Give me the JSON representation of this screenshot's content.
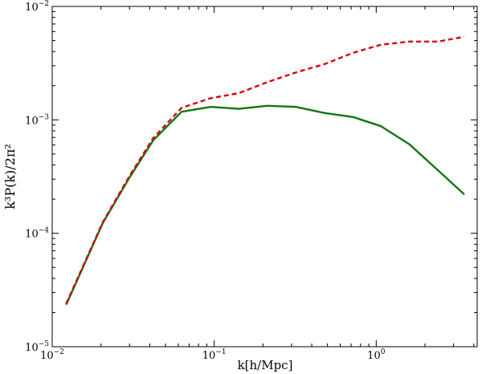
{
  "chart_data": {
    "type": "line",
    "xlabel": "k[h/Mpc]",
    "ylabel": "k³P(k)/2π²",
    "xscale": "log",
    "yscale": "log",
    "xlim": [
      0.01,
      4.2
    ],
    "ylim": [
      1e-05,
      0.01
    ],
    "grid": false,
    "legend": "none",
    "x_ticks": [
      {
        "value": 0.01,
        "base": "10",
        "exp": "−2"
      },
      {
        "value": 0.1,
        "base": "10",
        "exp": "−1"
      },
      {
        "value": 1,
        "base": "10",
        "exp": "0"
      }
    ],
    "y_ticks": [
      {
        "value": 1e-05,
        "base": "10",
        "exp": "−5"
      },
      {
        "value": 0.0001,
        "base": "10",
        "exp": "−4"
      },
      {
        "value": 0.001,
        "base": "10",
        "exp": "−3"
      },
      {
        "value": 0.01,
        "base": "10",
        "exp": "−2"
      }
    ],
    "series": [
      {
        "color": "#dd0000",
        "style": "dashed",
        "x": [
          0.0122,
          0.0205,
          0.03,
          0.042,
          0.063,
          0.095,
          0.142,
          0.213,
          0.32,
          0.48,
          0.72,
          1.07,
          1.6,
          2.4,
          3.5
        ],
        "y": [
          2.4e-05,
          0.000125,
          0.00032,
          0.00069,
          0.00128,
          0.00155,
          0.00172,
          0.00215,
          0.00262,
          0.0031,
          0.0039,
          0.0046,
          0.0049,
          0.0049,
          0.0054
        ]
      },
      {
        "color": "#117711",
        "style": "solid",
        "x": [
          0.0122,
          0.0205,
          0.03,
          0.042,
          0.063,
          0.095,
          0.142,
          0.213,
          0.32,
          0.48,
          0.72,
          1.07,
          1.6,
          2.4,
          3.5
        ],
        "y": [
          2.35e-05,
          0.000123,
          0.00031,
          0.00066,
          0.00118,
          0.0013,
          0.00125,
          0.00133,
          0.0013,
          0.00115,
          0.00106,
          0.00088,
          0.00061,
          0.00036,
          0.00022
        ]
      }
    ]
  }
}
